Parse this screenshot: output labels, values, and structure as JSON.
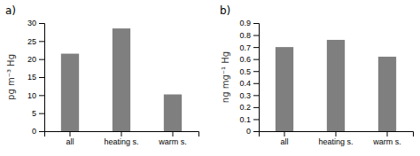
{
  "chart_data": [
    {
      "type": "bar",
      "title": "a)",
      "categories": [
        "all",
        "heating s.",
        "warm s."
      ],
      "values": [
        21.5,
        28.5,
        10.2
      ],
      "color": "#7f7f7f",
      "ylabel": "pg m⁻³ Hg",
      "ylim": [
        0,
        30
      ],
      "yticks": [
        0,
        5,
        10,
        15,
        20,
        25,
        30
      ],
      "grid": false
    },
    {
      "type": "bar",
      "title": "b)",
      "categories": [
        "all",
        "heating s.",
        "warm s."
      ],
      "values": [
        0.7,
        0.76,
        0.62
      ],
      "color": "#7f7f7f",
      "ylabel": "ng mg⁻¹ Hg",
      "ylim": [
        0,
        0.9
      ],
      "yticks": [
        0,
        0.1,
        0.2,
        0.3,
        0.4,
        0.5,
        0.6,
        0.7,
        0.8,
        0.9
      ],
      "grid": false
    }
  ]
}
